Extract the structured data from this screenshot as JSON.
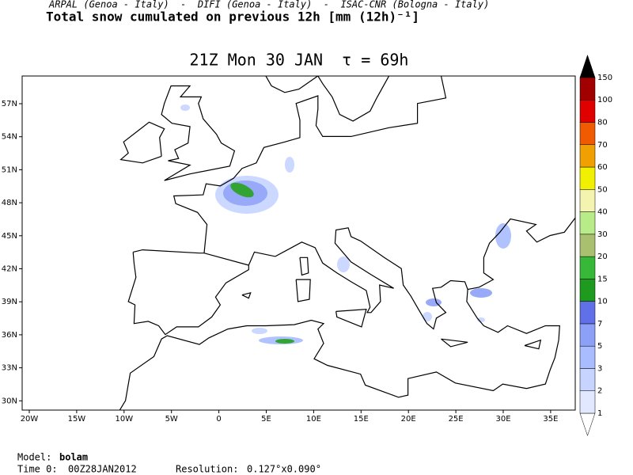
{
  "header": {
    "credits": "ARPAL (Genoa - Italy)  -  DIFI (Genoa - Italy)  -  ISAC-CNR (Bologna - Italy)",
    "title": "Total snow cumulated on previous 12h [mm (12h)⁻¹]"
  },
  "map": {
    "title": "21Z Mon 30 JAN  τ = 69h",
    "lon_labels": [
      "20W",
      "15W",
      "10W",
      "5W",
      "0",
      "5E",
      "10E",
      "15E",
      "20E",
      "25E",
      "30E",
      "35E"
    ],
    "lat_labels": [
      "57N",
      "54N",
      "51N",
      "48N",
      "45N",
      "42N",
      "39N",
      "36N",
      "33N",
      "30N"
    ]
  },
  "colorbar": {
    "levels": [
      1,
      2,
      3,
      5,
      7,
      10,
      15,
      20,
      30,
      40,
      50,
      60,
      70,
      80,
      100,
      150
    ],
    "colors": [
      "#ffffff",
      "#e2e8ff",
      "#c6d4ff",
      "#a8bcff",
      "#8ca0f8",
      "#6070e8",
      "#1e9a1e",
      "#38b838",
      "#a8c070",
      "#b8ec88",
      "#f4f4b0",
      "#f0f000",
      "#f0a000",
      "#f05a00",
      "#e00000",
      "#a00000",
      "#000000"
    ]
  },
  "footer": {
    "model_label": "Model:",
    "model": "bolam",
    "time_label": "Time 0:",
    "time": "00Z28JAN2012",
    "resolution_label": "Resolution:",
    "resolution": "0.127°x0.090°"
  }
}
